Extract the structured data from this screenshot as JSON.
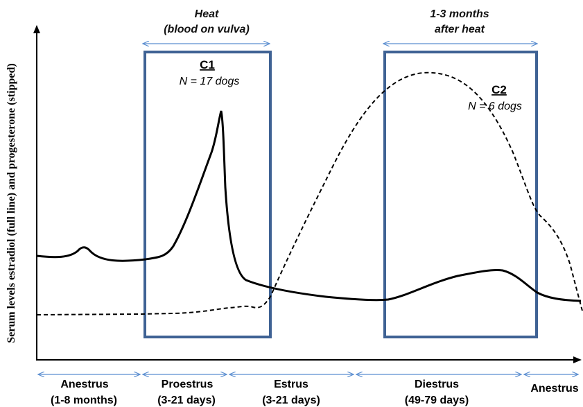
{
  "y_axis_label": "Serum levels estradiol (full line) and progesterone (stipped)",
  "headers": {
    "heat_line1": "Heat",
    "heat_line2": "(blood on vulva)",
    "after_line1": "1-3 months",
    "after_line2": "after heat"
  },
  "boxes": {
    "c1": {
      "title": "C1",
      "subtitle": "N = 17 dogs"
    },
    "c2": {
      "title": "C2",
      "subtitle": "N = 6 dogs"
    }
  },
  "phases": [
    {
      "name": "Anestrus",
      "duration": "(1-8 months)"
    },
    {
      "name": "Proestrus",
      "duration": "(3-21 days)"
    },
    {
      "name": "Estrus",
      "duration": "(3-21 days)"
    },
    {
      "name": "Diestrus",
      "duration": "(49-79 days)"
    },
    {
      "name": "Anestrus",
      "duration": ""
    }
  ],
  "colors": {
    "box_stroke": "#3f6294",
    "bracket_arrow": "#5b8ed0",
    "curve": "#000000"
  },
  "curves": {
    "estradiol": "full line",
    "progesterone": "stipped"
  }
}
